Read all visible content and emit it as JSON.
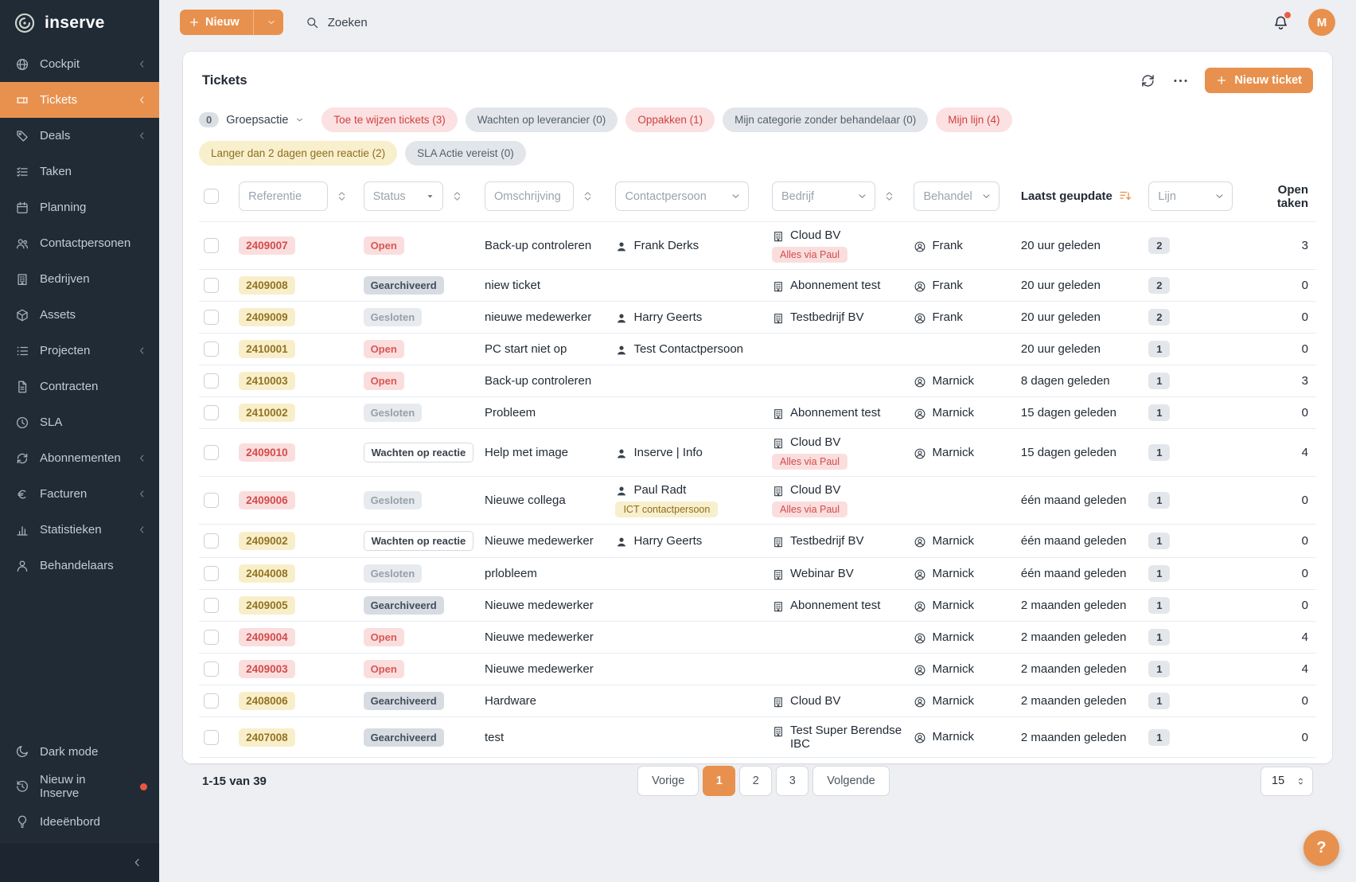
{
  "colors": {
    "accent": "#e8914e",
    "sidebar_bg": "#212b36",
    "danger": "#d34b4b",
    "warning_bg": "#f8efcd"
  },
  "brand": {
    "name": "inserve",
    "logo_icon": "inserve-spiral-icon"
  },
  "sidebar": {
    "items": [
      {
        "id": "cockpit",
        "label": "Cockpit",
        "icon": "globe",
        "chevron": true
      },
      {
        "id": "tickets",
        "label": "Tickets",
        "icon": "ticket",
        "chevron": true,
        "active": true
      },
      {
        "id": "deals",
        "label": "Deals",
        "icon": "tag",
        "chevron": true
      },
      {
        "id": "taken",
        "label": "Taken",
        "icon": "tasks"
      },
      {
        "id": "planning",
        "label": "Planning",
        "icon": "calendar"
      },
      {
        "id": "contactpersonen",
        "label": "Contactpersonen",
        "icon": "users"
      },
      {
        "id": "bedrijven",
        "label": "Bedrijven",
        "icon": "building"
      },
      {
        "id": "assets",
        "label": "Assets",
        "icon": "cube"
      },
      {
        "id": "projecten",
        "label": "Projecten",
        "icon": "listdots",
        "chevron": true
      },
      {
        "id": "contracten",
        "label": "Contracten",
        "icon": "doc"
      },
      {
        "id": "sla",
        "label": "SLA",
        "icon": "clock"
      },
      {
        "id": "abonnementen",
        "label": "Abonnementen",
        "icon": "refresh",
        "chevron": true
      },
      {
        "id": "facturen",
        "label": "Facturen",
        "icon": "euro",
        "chevron": true
      },
      {
        "id": "statistieken",
        "label": "Statistieken",
        "icon": "chart",
        "chevron": true
      },
      {
        "id": "behandelaars",
        "label": "Behandelaars",
        "icon": "usergear"
      }
    ],
    "footer_items": [
      {
        "id": "dark-mode",
        "label": "Dark mode",
        "icon": "moon"
      },
      {
        "id": "nieuw-in-inserve",
        "label": "Nieuw in Inserve",
        "icon": "history",
        "dot": true
      },
      {
        "id": "ideeenbord",
        "label": "Ideeënbord",
        "icon": "bulb"
      }
    ]
  },
  "topbar": {
    "new_button": "Nieuw",
    "search_placeholder": "Zoeken",
    "avatar_initial": "M"
  },
  "page": {
    "title": "Tickets",
    "new_ticket_button": "Nieuw ticket"
  },
  "filters": {
    "groepsactie": {
      "count": "0",
      "label": "Groepsactie"
    },
    "chips": [
      {
        "label": "Toe te wijzen tickets (3)",
        "variant": "red"
      },
      {
        "label": "Wachten op leverancier (0)",
        "variant": "gray"
      },
      {
        "label": "Oppakken (1)",
        "variant": "red"
      },
      {
        "label": "Mijn categorie zonder behandelaar (0)",
        "variant": "gray"
      },
      {
        "label": "Mijn lijn (4)",
        "variant": "red"
      },
      {
        "label": "Langer dan 2 dagen geen reactie (2)",
        "variant": "yellow"
      },
      {
        "label": "SLA Actie vereist (0)",
        "variant": "gray"
      }
    ]
  },
  "table": {
    "filters": {
      "referentie": "Referentie",
      "status": "Status",
      "omschrijving": "Omschrijving",
      "contactpersoon": "Contactpersoon",
      "bedrijf": "Bedrijf",
      "behandel": "Behandel",
      "lijn": "Lijn"
    },
    "headers": {
      "laatst_geupdate": "Laatst geupdate",
      "open_taken": "Open taken"
    },
    "rows": [
      {
        "ref": "2409007",
        "ref_variant": "red",
        "status": "Open",
        "status_variant": "open",
        "omschrijving": "Back-up controleren",
        "contact": "Frank Derks",
        "contact_tag": "",
        "bedrijf": "Cloud BV",
        "bedrijf_tag": "Alles via Paul",
        "behandelaar": "Frank",
        "updated": "20 uur geleden",
        "lijn": "2",
        "open_taken": "3"
      },
      {
        "ref": "2409008",
        "ref_variant": "yellow",
        "status": "Gearchiveerd",
        "status_variant": "archived",
        "omschrijving": "niew ticket",
        "contact": "",
        "contact_tag": "",
        "bedrijf": "Abonnement test",
        "bedrijf_tag": "",
        "behandelaar": "Frank",
        "updated": "20 uur geleden",
        "lijn": "2",
        "open_taken": "0"
      },
      {
        "ref": "2409009",
        "ref_variant": "yellow",
        "status": "Gesloten",
        "status_variant": "closed",
        "omschrijving": "nieuwe medewerker",
        "contact": "Harry Geerts",
        "contact_tag": "",
        "bedrijf": "Testbedrijf BV",
        "bedrijf_tag": "",
        "behandelaar": "Frank",
        "updated": "20 uur geleden",
        "lijn": "2",
        "open_taken": "0"
      },
      {
        "ref": "2410001",
        "ref_variant": "yellow",
        "status": "Open",
        "status_variant": "open",
        "omschrijving": "PC start niet op",
        "contact": "Test Contactpersoon",
        "contact_tag": "",
        "bedrijf": "",
        "bedrijf_tag": "",
        "behandelaar": "",
        "updated": "20 uur geleden",
        "lijn": "1",
        "open_taken": "0"
      },
      {
        "ref": "2410003",
        "ref_variant": "yellow",
        "status": "Open",
        "status_variant": "open",
        "omschrijving": "Back-up controleren",
        "contact": "",
        "contact_tag": "",
        "bedrijf": "",
        "bedrijf_tag": "",
        "behandelaar": "Marnick",
        "updated": "8 dagen geleden",
        "lijn": "1",
        "open_taken": "3"
      },
      {
        "ref": "2410002",
        "ref_variant": "yellow",
        "status": "Gesloten",
        "status_variant": "closed",
        "omschrijving": "Probleem",
        "contact": "",
        "contact_tag": "",
        "bedrijf": "Abonnement test",
        "bedrijf_tag": "",
        "behandelaar": "Marnick",
        "updated": "15 dagen geleden",
        "lijn": "1",
        "open_taken": "0"
      },
      {
        "ref": "2409010",
        "ref_variant": "red",
        "status": "Wachten op reactie",
        "status_variant": "waiting",
        "omschrijving": "Help met image",
        "contact": "Inserve | Info",
        "contact_tag": "",
        "bedrijf": "Cloud BV",
        "bedrijf_tag": "Alles via Paul",
        "behandelaar": "Marnick",
        "updated": "15 dagen geleden",
        "lijn": "1",
        "open_taken": "4"
      },
      {
        "ref": "2409006",
        "ref_variant": "red",
        "status": "Gesloten",
        "status_variant": "closed",
        "omschrijving": "Nieuwe collega",
        "contact": "Paul Radt",
        "contact_tag": "ICT contactpersoon",
        "bedrijf": "Cloud BV",
        "bedrijf_tag": "Alles via Paul",
        "behandelaar": "",
        "updated": "één maand geleden",
        "lijn": "1",
        "open_taken": "0"
      },
      {
        "ref": "2409002",
        "ref_variant": "yellow",
        "status": "Wachten op reactie",
        "status_variant": "waiting",
        "omschrijving": "Nieuwe medewerker",
        "contact": "Harry Geerts",
        "contact_tag": "",
        "bedrijf": "Testbedrijf BV",
        "bedrijf_tag": "",
        "behandelaar": "Marnick",
        "updated": "één maand geleden",
        "lijn": "1",
        "open_taken": "0"
      },
      {
        "ref": "2404008",
        "ref_variant": "yellow",
        "status": "Gesloten",
        "status_variant": "closed",
        "omschrijving": "prlobleem",
        "contact": "",
        "contact_tag": "",
        "bedrijf": "Webinar BV",
        "bedrijf_tag": "",
        "behandelaar": "Marnick",
        "updated": "één maand geleden",
        "lijn": "1",
        "open_taken": "0"
      },
      {
        "ref": "2409005",
        "ref_variant": "yellow",
        "status": "Gearchiveerd",
        "status_variant": "archived",
        "omschrijving": "Nieuwe medewerker",
        "contact": "",
        "contact_tag": "",
        "bedrijf": "Abonnement test",
        "bedrijf_tag": "",
        "behandelaar": "Marnick",
        "updated": "2 maanden geleden",
        "lijn": "1",
        "open_taken": "0"
      },
      {
        "ref": "2409004",
        "ref_variant": "red",
        "status": "Open",
        "status_variant": "open",
        "omschrijving": "Nieuwe medewerker",
        "contact": "",
        "contact_tag": "",
        "bedrijf": "",
        "bedrijf_tag": "",
        "behandelaar": "Marnick",
        "updated": "2 maanden geleden",
        "lijn": "1",
        "open_taken": "4"
      },
      {
        "ref": "2409003",
        "ref_variant": "red",
        "status": "Open",
        "status_variant": "open",
        "omschrijving": "Nieuwe medewerker",
        "contact": "",
        "contact_tag": "",
        "bedrijf": "",
        "bedrijf_tag": "",
        "behandelaar": "Marnick",
        "updated": "2 maanden geleden",
        "lijn": "1",
        "open_taken": "4"
      },
      {
        "ref": "2408006",
        "ref_variant": "yellow",
        "status": "Gearchiveerd",
        "status_variant": "archived",
        "omschrijving": "Hardware",
        "contact": "",
        "contact_tag": "",
        "bedrijf": "Cloud BV",
        "bedrijf_tag": "",
        "behandelaar": "Marnick",
        "updated": "2 maanden geleden",
        "lijn": "1",
        "open_taken": "0"
      },
      {
        "ref": "2407008",
        "ref_variant": "yellow",
        "status": "Gearchiveerd",
        "status_variant": "archived",
        "omschrijving": "test",
        "contact": "",
        "contact_tag": "",
        "bedrijf": "Test Super Berendse IBC",
        "bedrijf_tag": "",
        "behandelaar": "Marnick",
        "updated": "2 maanden geleden",
        "lijn": "1",
        "open_taken": "0"
      }
    ]
  },
  "pagination": {
    "range": "1-15 van 39",
    "prev": "Vorige",
    "pages": [
      "1",
      "2",
      "3"
    ],
    "active_page": "1",
    "next": "Volgende",
    "page_size": "15"
  },
  "help_button": "?"
}
